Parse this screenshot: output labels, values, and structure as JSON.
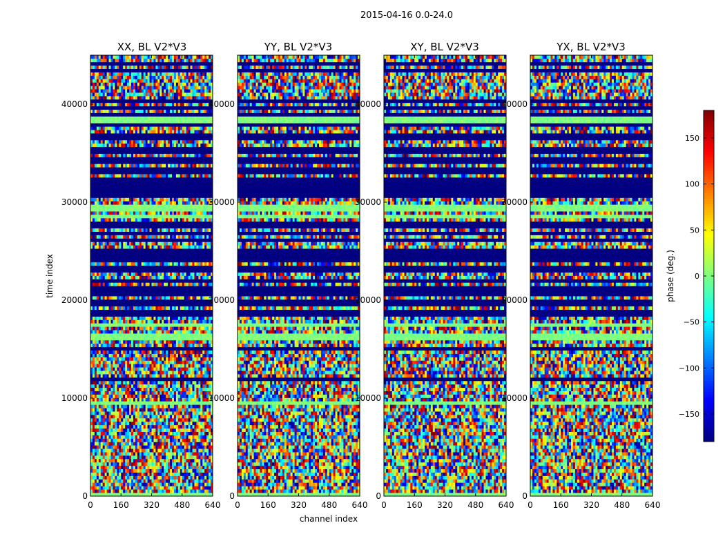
{
  "chart_data": {
    "type": "heatmap",
    "suptitle": "2015-04-16 0.0-24.0",
    "xlabel": "channel index",
    "ylabel": "time index",
    "xlim": [
      0,
      640
    ],
    "ylim": [
      0,
      45000
    ],
    "x_ticks": [
      0,
      160,
      320,
      480,
      640
    ],
    "x_tick_labels": [
      "0",
      "160",
      "320",
      "480",
      "640"
    ],
    "y_ticks": [
      0,
      10000,
      20000,
      30000,
      40000
    ],
    "y_tick_labels": [
      "0",
      "10000",
      "20000",
      "30000",
      "40000"
    ],
    "colormap": "jet",
    "colorbar": {
      "label": "phase (deg.)",
      "vmin": -180,
      "vmax": 180,
      "ticks": [
        150,
        100,
        50,
        0,
        -50,
        -100,
        -150
      ],
      "tick_labels": [
        "150",
        "100",
        "50",
        "0",
        "−50",
        "−100",
        "−150"
      ]
    },
    "panels": [
      {
        "title": "XX, BL V2*V3"
      },
      {
        "title": "YY, BL V2*V3"
      },
      {
        "title": "XY, BL V2*V3"
      },
      {
        "title": "YX, BL V2*V3"
      }
    ],
    "structure": {
      "flagged_blocks_deg": -180,
      "flagged_ranges": [
        [
          30300,
          32400
        ]
      ],
      "flat_zero_phase_bands": [
        [
          0,
          500
        ],
        [
          9200,
          9700
        ],
        [
          16000,
          16500
        ],
        [
          17200,
          17500
        ],
        [
          28300,
          28600
        ],
        [
          29200,
          29600
        ],
        [
          38200,
          38700
        ]
      ],
      "flagged_lines": [
        11800,
        12000,
        14900,
        15200,
        18000,
        18500,
        19000,
        19500,
        20000,
        20500,
        21000,
        21400,
        22000,
        22500,
        23000,
        23400,
        24000,
        24300,
        24500,
        24800,
        25000,
        26000,
        26700,
        27000,
        27500,
        27800,
        33000,
        33400,
        34000,
        34500,
        35000,
        35500,
        36000,
        36500,
        37000,
        37400,
        37800,
        39000,
        39500,
        39800,
        40200,
        43500,
        44000
      ]
    }
  }
}
